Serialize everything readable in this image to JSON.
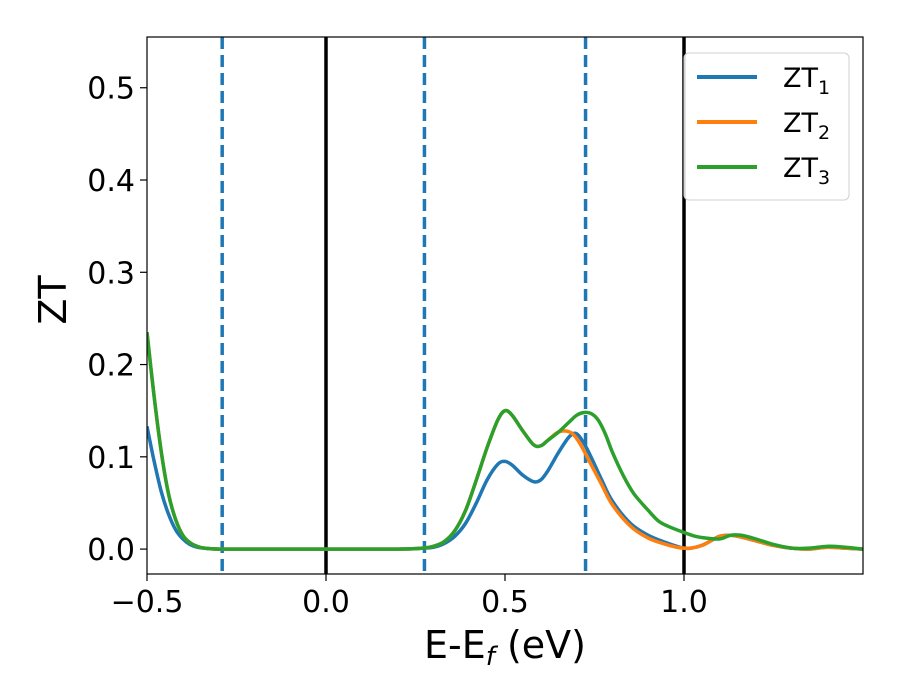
{
  "chart_data": {
    "type": "line",
    "xlabel_main": "E-E",
    "xlabel_sub": "f",
    "xlabel_unit": " (eV)",
    "ylabel": "ZT",
    "xlim": [
      -0.5,
      1.5
    ],
    "ylim": [
      -0.027,
      0.555
    ],
    "x_ticks": [
      -0.5,
      0.0,
      0.5,
      1.0
    ],
    "x_tick_labels": [
      "−0.5",
      "0.0",
      "0.5",
      "1.0"
    ],
    "y_ticks": [
      0.0,
      0.1,
      0.2,
      0.3,
      0.4,
      0.5
    ],
    "y_tick_labels": [
      "0.0",
      "0.1",
      "0.2",
      "0.3",
      "0.4",
      "0.5"
    ],
    "grid": false,
    "legend_position": "top-right",
    "vlines_solid": [
      0.0,
      1.0
    ],
    "vlines_dashed": [
      -0.29,
      0.275,
      0.725
    ],
    "colors": {
      "solid_vline": "#000000",
      "dashed_vline": "#1f77b4"
    },
    "series": [
      {
        "name_main": "ZT",
        "name_sub": "1",
        "color": "#1f77b4",
        "x": [
          -0.5,
          -0.48,
          -0.46,
          -0.44,
          -0.42,
          -0.4,
          -0.38,
          -0.36,
          -0.34,
          -0.3,
          -0.2,
          0.0,
          0.2,
          0.27,
          0.3,
          0.33,
          0.36,
          0.39,
          0.42,
          0.45,
          0.48,
          0.5,
          0.52,
          0.55,
          0.58,
          0.6,
          0.62,
          0.65,
          0.68,
          0.7,
          0.72,
          0.74,
          0.77,
          0.8,
          0.85,
          0.9,
          0.95,
          0.98,
          1.0,
          1.02,
          1.05,
          1.08,
          1.1,
          1.13,
          1.16,
          1.2,
          1.25,
          1.3,
          1.35,
          1.4,
          1.45,
          1.5
        ],
        "y": [
          0.133,
          0.095,
          0.062,
          0.038,
          0.021,
          0.011,
          0.005,
          0.002,
          0.001,
          0.0,
          0.0,
          0.0,
          0.0,
          0.001,
          0.002,
          0.006,
          0.014,
          0.028,
          0.05,
          0.075,
          0.092,
          0.095,
          0.091,
          0.08,
          0.073,
          0.075,
          0.085,
          0.105,
          0.122,
          0.125,
          0.115,
          0.1,
          0.075,
          0.052,
          0.028,
          0.015,
          0.007,
          0.003,
          0.001,
          0.001,
          0.004,
          0.01,
          0.014,
          0.015,
          0.013,
          0.009,
          0.004,
          0.001,
          0.0,
          0.002,
          0.001,
          0.0
        ]
      },
      {
        "name_main": "ZT",
        "name_sub": "2",
        "color": "#ff7f0e",
        "x": [
          -0.5,
          -0.48,
          -0.46,
          -0.44,
          -0.42,
          -0.4,
          -0.38,
          -0.36,
          -0.34,
          -0.3,
          -0.2,
          0.0,
          0.2,
          0.27,
          0.3,
          0.33,
          0.36,
          0.39,
          0.42,
          0.45,
          0.48,
          0.5,
          0.52,
          0.55,
          0.58,
          0.6,
          0.62,
          0.65,
          0.68,
          0.7,
          0.72,
          0.74,
          0.77,
          0.8,
          0.85,
          0.9,
          0.95,
          0.98,
          1.0,
          1.02,
          1.05,
          1.08,
          1.1,
          1.13,
          1.16,
          1.2,
          1.25,
          1.3,
          1.35,
          1.4,
          1.45,
          1.5
        ],
        "y": [
          0.235,
          0.165,
          0.105,
          0.06,
          0.032,
          0.015,
          0.007,
          0.003,
          0.001,
          0.0,
          0.0,
          0.0,
          0.0,
          0.001,
          0.003,
          0.008,
          0.02,
          0.042,
          0.075,
          0.11,
          0.14,
          0.15,
          0.145,
          0.128,
          0.113,
          0.112,
          0.118,
          0.127,
          0.127,
          0.12,
          0.107,
          0.092,
          0.07,
          0.048,
          0.025,
          0.012,
          0.005,
          0.002,
          0.001,
          0.001,
          0.004,
          0.01,
          0.014,
          0.015,
          0.013,
          0.009,
          0.004,
          0.001,
          0.0,
          0.002,
          0.001,
          0.0
        ]
      },
      {
        "name_main": "ZT",
        "name_sub": "3",
        "color": "#2ca02c",
        "x": [
          -0.5,
          -0.48,
          -0.46,
          -0.44,
          -0.42,
          -0.4,
          -0.38,
          -0.36,
          -0.34,
          -0.3,
          -0.2,
          0.0,
          0.2,
          0.27,
          0.3,
          0.33,
          0.36,
          0.39,
          0.42,
          0.45,
          0.48,
          0.5,
          0.52,
          0.55,
          0.58,
          0.6,
          0.62,
          0.65,
          0.68,
          0.7,
          0.72,
          0.74,
          0.76,
          0.78,
          0.8,
          0.83,
          0.86,
          0.9,
          0.93,
          0.96,
          1.0,
          1.03,
          1.06,
          1.1,
          1.13,
          1.16,
          1.2,
          1.25,
          1.3,
          1.35,
          1.4,
          1.45,
          1.5
        ],
        "y": [
          0.235,
          0.165,
          0.105,
          0.06,
          0.032,
          0.015,
          0.007,
          0.003,
          0.001,
          0.0,
          0.0,
          0.0,
          0.0,
          0.001,
          0.003,
          0.008,
          0.02,
          0.042,
          0.075,
          0.11,
          0.14,
          0.15,
          0.145,
          0.128,
          0.113,
          0.112,
          0.118,
          0.127,
          0.138,
          0.145,
          0.148,
          0.147,
          0.14,
          0.125,
          0.105,
          0.08,
          0.06,
          0.042,
          0.03,
          0.024,
          0.018,
          0.014,
          0.012,
          0.011,
          0.015,
          0.015,
          0.011,
          0.005,
          0.001,
          0.001,
          0.003,
          0.002,
          0.0
        ]
      }
    ]
  }
}
